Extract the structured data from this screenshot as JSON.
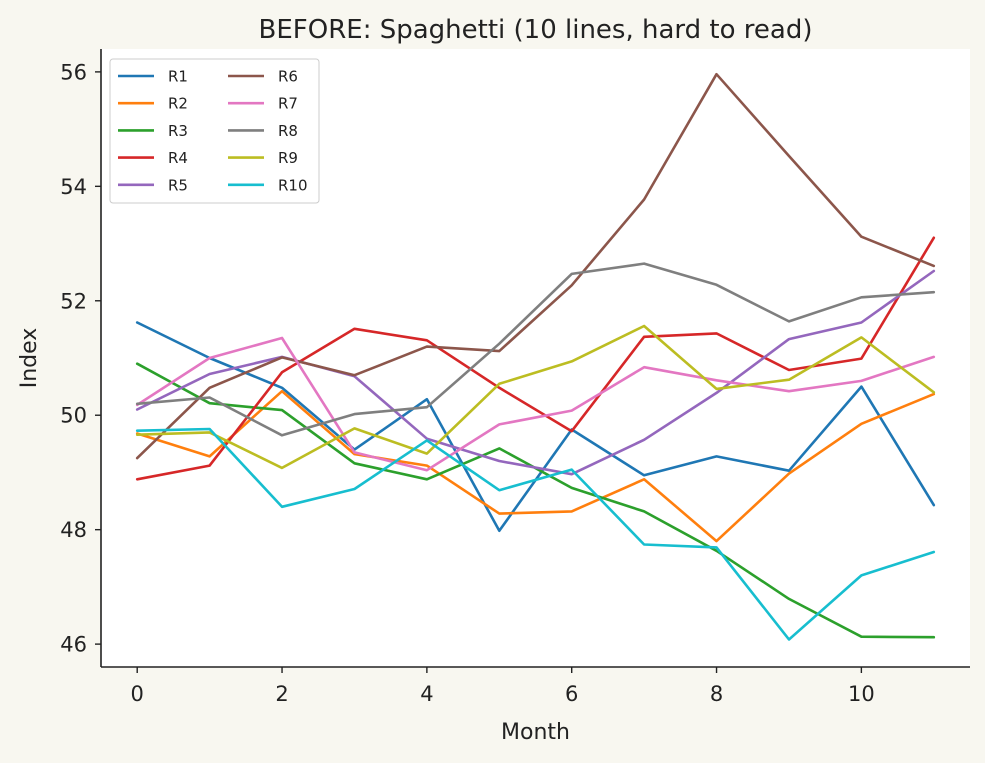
{
  "chart_data": {
    "type": "line",
    "title": "BEFORE: Spaghetti (10 lines, hard to read)",
    "xlabel": "Month",
    "ylabel": "Index",
    "xlim": [
      -0.5,
      11.5
    ],
    "ylim": [
      45.6,
      56.4
    ],
    "xticks": [
      0,
      2,
      4,
      6,
      8,
      10
    ],
    "yticks": [
      46,
      48,
      50,
      52,
      54,
      56
    ],
    "grid": false,
    "legend_position": "top-left",
    "x": [
      0,
      1,
      2,
      3,
      4,
      5,
      6,
      7,
      8,
      9,
      10,
      11
    ],
    "series": [
      {
        "name": "R1",
        "color": "#1f77b4",
        "values": [
          51.62,
          51.0,
          50.48,
          49.4,
          50.28,
          47.98,
          49.75,
          48.95,
          49.28,
          49.03,
          50.5,
          48.43
        ]
      },
      {
        "name": "R2",
        "color": "#ff7f0e",
        "values": [
          49.68,
          49.28,
          50.42,
          49.32,
          49.12,
          48.28,
          48.32,
          48.88,
          47.8,
          48.98,
          49.85,
          50.37
        ]
      },
      {
        "name": "R3",
        "color": "#2ca02c",
        "values": [
          50.9,
          50.21,
          50.09,
          49.16,
          48.88,
          49.42,
          48.73,
          48.32,
          47.63,
          46.79,
          46.13,
          46.12
        ]
      },
      {
        "name": "R4",
        "color": "#d62728",
        "values": [
          48.88,
          49.12,
          50.75,
          51.51,
          51.31,
          50.48,
          49.72,
          51.37,
          51.43,
          50.79,
          50.99,
          53.1
        ]
      },
      {
        "name": "R5",
        "color": "#9467bd",
        "values": [
          50.1,
          50.72,
          51.02,
          50.68,
          49.59,
          49.2,
          48.97,
          49.57,
          50.39,
          51.33,
          51.62,
          52.52
        ]
      },
      {
        "name": "R6",
        "color": "#8c564b",
        "values": [
          49.25,
          50.48,
          51.01,
          50.7,
          51.2,
          51.12,
          52.27,
          53.77,
          55.96,
          54.53,
          53.12,
          52.61
        ]
      },
      {
        "name": "R7",
        "color": "#e377c2",
        "values": [
          50.18,
          51.0,
          51.35,
          49.35,
          49.04,
          49.84,
          50.08,
          50.84,
          50.61,
          50.42,
          50.6,
          51.02
        ]
      },
      {
        "name": "R8",
        "color": "#7f7f7f",
        "values": [
          50.2,
          50.31,
          49.65,
          50.02,
          50.14,
          51.25,
          52.47,
          52.65,
          52.28,
          51.64,
          52.06,
          52.15
        ]
      },
      {
        "name": "R9",
        "color": "#bcbd22",
        "values": [
          49.66,
          49.7,
          49.08,
          49.77,
          49.33,
          50.55,
          50.94,
          51.56,
          50.46,
          50.62,
          51.36,
          50.4
        ]
      },
      {
        "name": "R10",
        "color": "#17becf",
        "values": [
          49.73,
          49.76,
          48.4,
          48.71,
          49.56,
          48.69,
          49.05,
          47.74,
          47.69,
          46.08,
          47.2,
          47.61
        ]
      }
    ]
  }
}
